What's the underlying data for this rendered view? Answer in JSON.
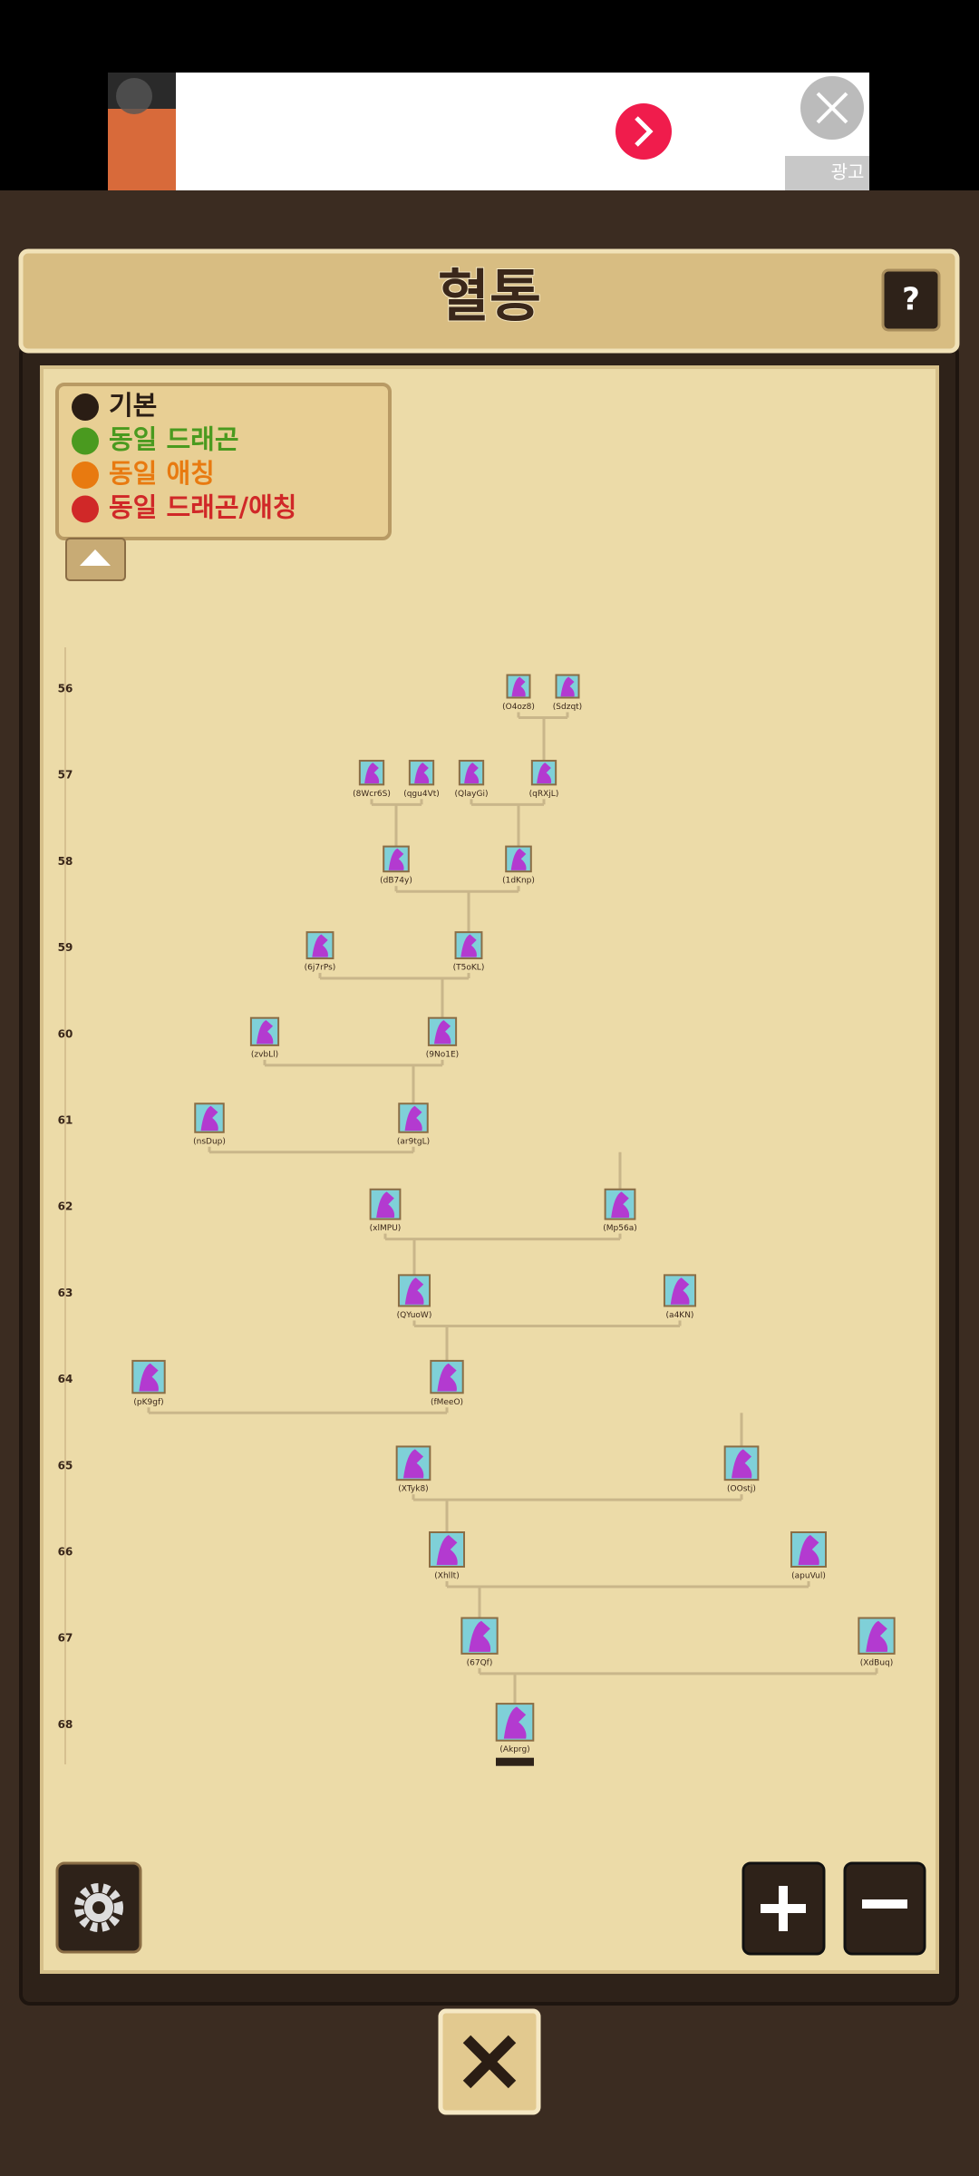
{
  "ad": {
    "badge": "광고"
  },
  "header": {
    "title": "혈통",
    "help": "?"
  },
  "legend": [
    "기본",
    "동일 드래곤",
    "동일 애칭",
    "동일 드래곤/애칭"
  ],
  "generations": [
    {
      "level": "56",
      "nodes": [
        "(O4oz8)",
        "(Sdzqt)"
      ]
    },
    {
      "level": "57",
      "nodes": [
        "(8Wcr6S)",
        "(qgu4Vt)",
        "(QlayGi)",
        "(qRXjL)"
      ]
    },
    {
      "level": "58",
      "nodes": [
        "(dB74y)",
        "(1dKnp)"
      ]
    },
    {
      "level": "59",
      "nodes": [
        "(6j7rPs)",
        "(T5oKL)"
      ]
    },
    {
      "level": "60",
      "nodes": [
        "(zvbLl)",
        "(9No1E)"
      ]
    },
    {
      "level": "61",
      "nodes": [
        "(nsDup)",
        "(ar9tgL)"
      ]
    },
    {
      "level": "62",
      "nodes": [
        "(xlMPU)",
        "(Mp56a)"
      ]
    },
    {
      "level": "63",
      "nodes": [
        "(QYuoW)",
        "(a4KN)"
      ]
    },
    {
      "level": "64",
      "nodes": [
        "(pK9gf)",
        "(fMeeO)"
      ]
    },
    {
      "level": "65",
      "nodes": [
        "(XTyk8)",
        "(OOstj)"
      ]
    },
    {
      "level": "66",
      "nodes": [
        "(Xhllt)",
        "(apuVul)"
      ]
    },
    {
      "level": "67",
      "nodes": [
        "(67Qf)",
        "(XdBuq)"
      ]
    },
    {
      "level": "68",
      "nodes": [
        "(Akprg)"
      ]
    }
  ]
}
